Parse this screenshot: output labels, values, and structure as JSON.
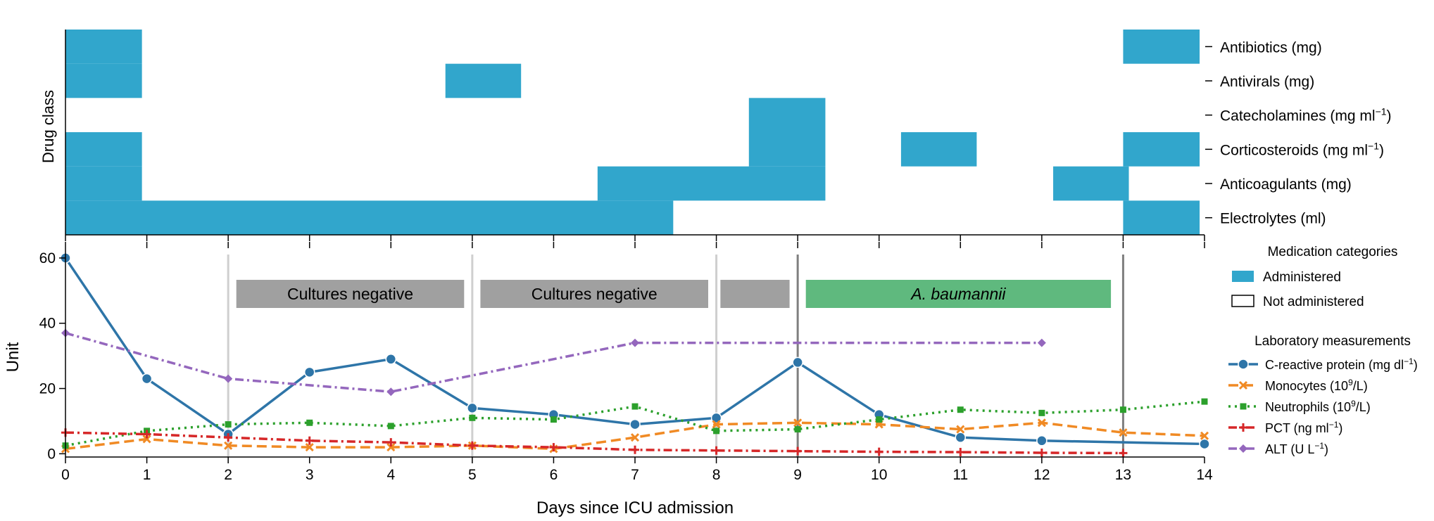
{
  "figure": {
    "xlabel": "Days since ICU admission",
    "top_ylabel": "Drug class",
    "bottom_ylabel": "Unit"
  },
  "chart_data": [
    {
      "type": "heatmap",
      "xlabel": "",
      "ylabel": "Drug class",
      "xlim": [
        0,
        14
      ],
      "rows": [
        {
          "label": "Antibiotics (mg)",
          "label_parts": [
            "Antibiotics (mg)"
          ],
          "segments": [
            [
              0,
              0.94
            ],
            [
              13.0,
              13.94
            ]
          ]
        },
        {
          "label": "Antivirals (mg)",
          "label_parts": [
            "Antivirals (mg)"
          ],
          "segments": [
            [
              0,
              0.94
            ],
            [
              4.67,
              5.6
            ]
          ]
        },
        {
          "label": "Catecholamines (mg ml⁻¹)",
          "label_parts": [
            "Catecholamines (mg ml",
            "−1",
            ")"
          ],
          "segments": [
            [
              8.4,
              9.34
            ]
          ]
        },
        {
          "label": "Corticosteroids (mg ml⁻¹)",
          "label_parts": [
            "Corticosteroids (mg ml",
            "−1",
            ")"
          ],
          "segments": [
            [
              0,
              0.94
            ],
            [
              8.4,
              9.34
            ],
            [
              10.27,
              11.2
            ],
            [
              13.0,
              13.94
            ]
          ]
        },
        {
          "label": "Anticoagulants (mg)",
          "label_parts": [
            "Anticoagulants (mg)"
          ],
          "segments": [
            [
              0,
              0.94
            ],
            [
              6.54,
              9.34
            ],
            [
              12.14,
              13.07
            ]
          ]
        },
        {
          "label": "Electrolytes (ml)",
          "label_parts": [
            "Electrolytes (ml)"
          ],
          "segments": [
            [
              0,
              7.47
            ],
            [
              13.0,
              13.94
            ]
          ]
        }
      ],
      "color": "#31a6cc"
    },
    {
      "type": "line",
      "xlabel": "Days since ICU admission",
      "ylabel": "Unit",
      "xlim": [
        0,
        14
      ],
      "ylim": [
        -1,
        63
      ],
      "x_ticks": [
        0,
        1,
        2,
        3,
        4,
        5,
        6,
        7,
        8,
        9,
        10,
        11,
        12,
        13,
        14
      ],
      "y_ticks": [
        0,
        20,
        40,
        60
      ],
      "grid": false,
      "series": [
        {
          "name": "C-reactive protein (mg dl⁻¹)",
          "label_parts": [
            "C-reactive protein (mg dl",
            "−1",
            ")"
          ],
          "color": "#2e75a8",
          "dash": "",
          "marker": "circle",
          "x": [
            0,
            1,
            2,
            3,
            4,
            5,
            6,
            7,
            8,
            9,
            10,
            11,
            12,
            14
          ],
          "y": [
            60,
            23,
            6,
            25,
            29,
            14,
            12,
            9,
            11,
            28,
            12,
            5,
            4,
            3
          ]
        },
        {
          "name": "Monocytes (10⁹/L)",
          "label_parts": [
            "Monocytes (10",
            "9",
            "/L)"
          ],
          "color": "#f08a24",
          "dash": "14 7",
          "marker": "x",
          "x": [
            0,
            1,
            2,
            3,
            4,
            5,
            6,
            7,
            8,
            9,
            10,
            11,
            12,
            13,
            14
          ],
          "y": [
            1.5,
            4.5,
            2.5,
            2,
            2,
            2.5,
            1.5,
            5,
            9,
            9.5,
            9,
            7.5,
            9.5,
            6.5,
            5.5
          ]
        },
        {
          "name": "Neutrophils (10⁹/L)",
          "label_parts": [
            "Neutrophils (10",
            "9",
            "/L)"
          ],
          "color": "#2ca02c",
          "dash": "3 6",
          "marker": "square",
          "x": [
            0,
            1,
            2,
            3,
            4,
            5,
            6,
            7,
            8,
            9,
            10,
            11,
            12,
            13,
            14
          ],
          "y": [
            2.5,
            7,
            9,
            9.5,
            8.5,
            11,
            10.5,
            14.5,
            7,
            7.5,
            10.5,
            13.5,
            12.5,
            13.5,
            16
          ]
        },
        {
          "name": "PCT (ng ml⁻¹)",
          "label_parts": [
            "PCT (ng ml",
            "−1",
            ")"
          ],
          "color": "#d62728",
          "dash": "12 5 3 5",
          "marker": "plus",
          "x": [
            0,
            1,
            2,
            3,
            4,
            5,
            6,
            7,
            8,
            9,
            10,
            11,
            12,
            13
          ],
          "y": [
            6.5,
            6,
            5,
            4,
            3.5,
            2.5,
            2,
            1.2,
            1,
            0.8,
            0.6,
            0.5,
            0.3,
            0.2
          ]
        },
        {
          "name": "ALT (U L⁻¹)",
          "label_parts": [
            "ALT (U L",
            "−1",
            ")"
          ],
          "color": "#9467bd",
          "dash": "12 5 3 5",
          "marker": "diamond",
          "x": [
            0,
            2,
            4,
            7,
            12
          ],
          "y": [
            37,
            23,
            19,
            34,
            34
          ]
        }
      ],
      "vertical_lines": [
        {
          "x": 2,
          "color": "#cfcfcf"
        },
        {
          "x": 5,
          "color": "#cfcfcf"
        },
        {
          "x": 8,
          "color": "#cfcfcf"
        },
        {
          "x": 9,
          "color": "#7f7f7f"
        },
        {
          "x": 13,
          "color": "#7f7f7f"
        }
      ],
      "culture_bands": [
        {
          "label": "Cultures negative",
          "x0": 2.1,
          "x1": 4.9,
          "color": "#a0a0a0",
          "italic": false
        },
        {
          "label": "Cultures negative",
          "x0": 5.1,
          "x1": 7.9,
          "color": "#a0a0a0",
          "italic": false
        },
        {
          "label": "",
          "x0": 8.05,
          "x1": 8.9,
          "color": "#a0a0a0",
          "italic": false
        },
        {
          "label": "A. baumannii",
          "x0": 9.1,
          "x1": 12.85,
          "color": "#5fb97e",
          "italic": true
        }
      ]
    }
  ],
  "legend": {
    "medication_title": "Medication categories",
    "administered": "Administered",
    "not_administered": "Not administered",
    "lab_title": "Laboratory measurements"
  }
}
